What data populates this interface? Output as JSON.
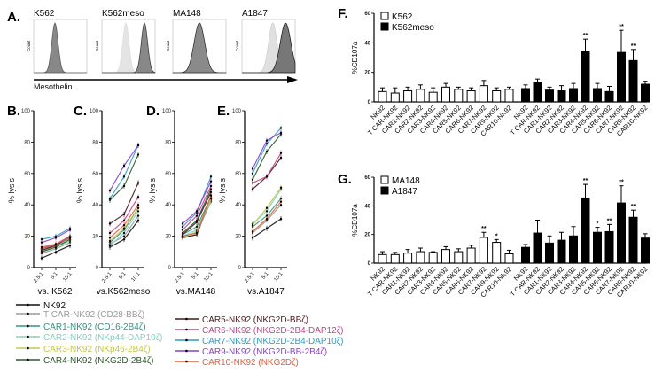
{
  "panel_labels": {
    "A": "A.",
    "B": "B.",
    "C": "C.",
    "D": "D.",
    "E": "E.",
    "F": "F.",
    "G": "G."
  },
  "histograms": {
    "titles": [
      "K562",
      "K562meso",
      "MA148",
      "A1847"
    ],
    "ylabel": "Count",
    "xlabel": "Mesothelin"
  },
  "legend": [
    {
      "label": "NK92",
      "color": "#111111"
    },
    {
      "label": "T CAR-NK92 (CD28-BBζ)",
      "color": "#9a9a9a"
    },
    {
      "label": "CAR1-NK92 (CD16-2B4ζ)",
      "color": "#2f9585"
    },
    {
      "label": "CAR2-NK92 (NKp44-DAP10ζ)",
      "color": "#86cfc2"
    },
    {
      "label": "CAR3-NK92 (NKp46-2B4ζ)",
      "color": "#c2c84a"
    },
    {
      "label": "CAR4-NK92 (NKG2D-2B4ζ)",
      "color": "#2e5a2a"
    },
    {
      "label": "CAR5-NK92 (NKG2D-BBζ)",
      "color": "#4a1a1e"
    },
    {
      "label": "CAR6-NK92 (NKG2D-2B4-DAP12ζ)",
      "color": "#c0468a"
    },
    {
      "label": "CAR7-NK92 (NKG2D-2B4-DAP10ζ)",
      "color": "#2f9cc6"
    },
    {
      "label": "CAR9-NK92 (NKG2D-BB-2B4ζ)",
      "color": "#8a44c4"
    },
    {
      "label": "CAR10-NK92 (NKG2Dζ)",
      "color": "#e0603e"
    }
  ],
  "chart_data": [
    {
      "type": "line",
      "panel": "B",
      "xlabel": "vs. K562",
      "ylabel": "% lysis",
      "categories": [
        "2.5:1",
        "5:1",
        "10:1"
      ],
      "ylim": [
        0,
        100
      ],
      "yticks": [
        "0",
        "20",
        "40",
        "60",
        "80",
        "100"
      ],
      "series": [
        [
          6,
          10,
          14
        ],
        [
          9,
          12,
          16
        ],
        [
          12,
          14,
          19
        ],
        [
          10,
          13,
          17
        ],
        [
          11,
          13,
          18
        ],
        [
          10,
          13,
          18
        ],
        [
          11,
          14,
          20
        ],
        [
          12,
          15,
          20
        ],
        [
          18,
          20,
          25
        ],
        [
          16,
          19,
          24
        ],
        [
          13,
          15,
          19
        ]
      ]
    },
    {
      "type": "line",
      "panel": "C",
      "xlabel": "vs.K562meso",
      "ylabel": "% lysis",
      "categories": [
        "2.5:1",
        "5:1",
        "10:1"
      ],
      "ylim": [
        0,
        100
      ],
      "yticks": [
        "0",
        "20",
        "40",
        "60",
        "80",
        "100"
      ],
      "series": [
        [
          13,
          18,
          30
        ],
        [
          15,
          20,
          33
        ],
        [
          16,
          24,
          38
        ],
        [
          14,
          22,
          36
        ],
        [
          17,
          25,
          38
        ],
        [
          43,
          52,
          72
        ],
        [
          28,
          34,
          54
        ],
        [
          22,
          30,
          45
        ],
        [
          44,
          58,
          78
        ],
        [
          49,
          65,
          78
        ],
        [
          19,
          27,
          40
        ]
      ]
    },
    {
      "type": "line",
      "panel": "D",
      "xlabel": "vs.MA148",
      "ylabel": "% lysis",
      "categories": [
        "2.5:1",
        "5:1",
        "10:1"
      ],
      "ylim": [
        0,
        100
      ],
      "yticks": [
        "0",
        "20",
        "40",
        "60",
        "80",
        "100"
      ],
      "series": [
        [
          19,
          21,
          44
        ],
        [
          20,
          22,
          42
        ],
        [
          21,
          26,
          45
        ],
        [
          20,
          24,
          43
        ],
        [
          19,
          23,
          44
        ],
        [
          22,
          30,
          50
        ],
        [
          21,
          29,
          48
        ],
        [
          24,
          33,
          52
        ],
        [
          26,
          35,
          58
        ],
        [
          28,
          36,
          55
        ],
        [
          20,
          22,
          46
        ]
      ]
    },
    {
      "type": "line",
      "panel": "E",
      "xlabel": "vs.A1847",
      "ylabel": "% lysis",
      "categories": [
        "2.5:1",
        "5:1",
        "10:1"
      ],
      "ylim": [
        0,
        100
      ],
      "yticks": [
        "0",
        "20",
        "40",
        "60",
        "80",
        "100"
      ],
      "series": [
        [
          19,
          25,
          31
        ],
        [
          22,
          30,
          40
        ],
        [
          26,
          33,
          44
        ],
        [
          28,
          36,
          50
        ],
        [
          27,
          38,
          51
        ],
        [
          56,
          74,
          85
        ],
        [
          50,
          58,
          70
        ],
        [
          54,
          58,
          73
        ],
        [
          60,
          79,
          89
        ],
        [
          63,
          81,
          86
        ],
        [
          23,
          31,
          42
        ]
      ]
    },
    {
      "type": "bar",
      "panel": "F",
      "ylabel": "%CD107a",
      "ylim": [
        0,
        60
      ],
      "yticks": [
        "0",
        "20",
        "40",
        "60"
      ],
      "categories": [
        "NK92",
        "T CAR-NK92",
        "CAR1-NK92",
        "CAR2-NK92",
        "CAR3-NK92",
        "CAR4-NK92",
        "CAR5-NK92",
        "CAR6-NK92",
        "CAR7-NK92",
        "CAR9-NK92",
        "CAR10-NK92"
      ],
      "series": [
        {
          "name": "K562",
          "fill": "open",
          "values": [
            7,
            6,
            7.5,
            8.5,
            6.5,
            10,
            8.5,
            7.5,
            11,
            7.5,
            8.5
          ],
          "errors": [
            2.5,
            3.5,
            2.5,
            3,
            3,
            2.5,
            1.5,
            2,
            3.5,
            2,
            1.5
          ],
          "sig": [
            "",
            "",
            "",
            "",
            "",
            "",
            "",
            "",
            "",
            "",
            ""
          ]
        },
        {
          "name": "K562meso",
          "fill": "filled",
          "values": [
            9,
            13,
            8,
            7.5,
            9,
            34.5,
            9,
            7,
            33.5,
            28,
            12
          ],
          "errors": [
            2.5,
            2.5,
            2,
            3.5,
            3.5,
            8,
            3.5,
            3.5,
            15,
            7.5,
            2
          ],
          "sig": [
            "",
            "",
            "",
            "",
            "",
            "**",
            "",
            "",
            "**",
            "**",
            ""
          ]
        }
      ]
    },
    {
      "type": "bar",
      "panel": "G",
      "ylabel": "%CD107a",
      "ylim": [
        0,
        60
      ],
      "yticks": [
        "0",
        "20",
        "40",
        "60"
      ],
      "categories": [
        "NK92",
        "T CAR-NK92",
        "CAR1-NK92",
        "CAR2-NK92",
        "CAR3-NK92",
        "CAR4-NK92",
        "CAR5-NK92",
        "CAR6-NK92",
        "CAR7-NK92",
        "CAR9-NK92",
        "CAR10-NK92"
      ],
      "series": [
        {
          "name": "MA148",
          "fill": "open",
          "values": [
            6,
            6,
            7,
            8,
            7.5,
            9.5,
            8,
            10.5,
            18,
            14.5,
            6.5
          ],
          "errors": [
            2,
            1.5,
            2.5,
            2.5,
            0.5,
            2,
            2,
            2,
            3.5,
            2,
            2.5
          ],
          "sig": [
            "",
            "",
            "",
            "",
            "",
            "",
            "",
            "",
            "**",
            "*",
            ""
          ]
        },
        {
          "name": "A1847",
          "fill": "filled",
          "values": [
            11,
            21,
            14,
            16,
            19,
            45.5,
            21.5,
            22,
            42,
            32,
            17.5
          ],
          "errors": [
            2,
            9,
            5,
            5.5,
            6.5,
            9.5,
            3.5,
            5,
            12,
            5,
            3
          ],
          "sig": [
            "",
            "",
            "",
            "",
            "",
            "**",
            "*",
            "**",
            "**",
            "**",
            ""
          ]
        }
      ]
    }
  ]
}
